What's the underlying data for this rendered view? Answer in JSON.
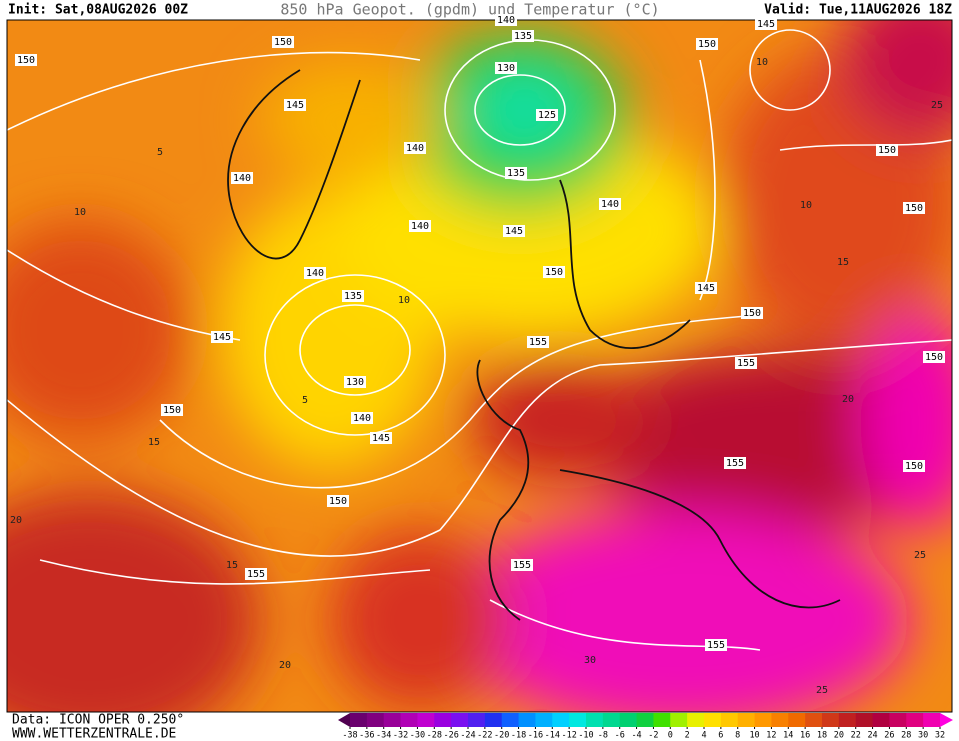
{
  "header": {
    "init": "Init: Sat,08AUG2026 00Z",
    "title": "850 hPa Geopot. (gpdm) und Temperatur (°C)",
    "valid": "Valid: Tue,11AUG2026 18Z"
  },
  "footer": {
    "data_source": "Data: ICON OPER 0.250°",
    "website": "WWW.WETTERZENTRALE.DE"
  },
  "colorbar": {
    "ticks": [
      -38,
      -36,
      -34,
      -32,
      -30,
      -28,
      -26,
      -24,
      -22,
      -20,
      -18,
      -16,
      -14,
      -12,
      -10,
      -8,
      -6,
      -4,
      -2,
      0,
      2,
      4,
      6,
      8,
      10,
      12,
      14,
      16,
      18,
      20,
      22,
      24,
      26,
      28,
      30,
      32
    ],
    "colors": [
      "#500050",
      "#6a006e",
      "#80007f",
      "#990099",
      "#b000b5",
      "#c000d0",
      "#9a00e0",
      "#7a10f0",
      "#5020f0",
      "#2030f0",
      "#1060ff",
      "#0090ff",
      "#00b0ff",
      "#00d0ff",
      "#00e8e0",
      "#00e0b0",
      "#00d890",
      "#00d070",
      "#10d040",
      "#40e000",
      "#a0f000",
      "#e8f000",
      "#ffe000",
      "#ffc800",
      "#ffb000",
      "#ff9800",
      "#f88000",
      "#f06a00",
      "#e05010",
      "#d03818",
      "#c02020",
      "#b01028",
      "#b00040",
      "#c80060",
      "#e00080",
      "#f000b0",
      "#ff00e0"
    ]
  },
  "geopotential_labels": [
    150,
    150,
    145,
    140,
    140,
    140,
    140,
    135,
    130,
    140,
    145,
    145,
    150,
    150,
    155,
    140,
    135,
    130,
    125,
    135,
    145,
    150,
    155,
    140,
    145,
    150,
    155,
    155,
    150,
    145,
    150,
    150,
    150,
    150,
    155,
    155
  ],
  "temperature_labels": [
    5,
    10,
    10,
    10,
    15,
    20,
    25,
    15,
    20,
    15,
    20,
    30,
    25,
    25,
    10,
    5
  ]
}
